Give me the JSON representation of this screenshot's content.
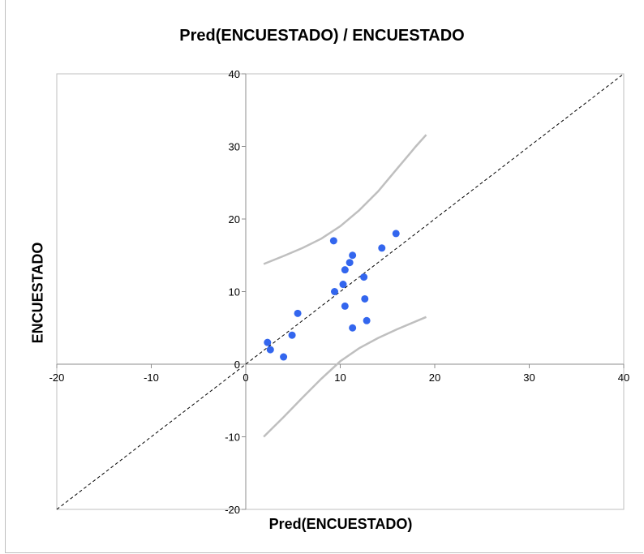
{
  "chart_data": {
    "type": "scatter",
    "title": "Pred(ENCUESTADO) / ENCUESTADO",
    "xlabel": "Pred(ENCUESTADO)",
    "ylabel": "ENCUESTADO",
    "xlim": [
      -20,
      40
    ],
    "ylim": [
      -20,
      40
    ],
    "xticks": [
      -20,
      -10,
      0,
      10,
      20,
      30,
      40
    ],
    "yticks": [
      -20,
      -10,
      0,
      10,
      20,
      30,
      40
    ],
    "grid": false,
    "series": [
      {
        "type": "scatter",
        "color": "#3366ee",
        "points": [
          {
            "x": 2.3,
            "y": 3
          },
          {
            "x": 2.6,
            "y": 2
          },
          {
            "x": 4.0,
            "y": 1
          },
          {
            "x": 4.9,
            "y": 4
          },
          {
            "x": 5.5,
            "y": 7
          },
          {
            "x": 9.3,
            "y": 17
          },
          {
            "x": 9.4,
            "y": 10
          },
          {
            "x": 10.3,
            "y": 11
          },
          {
            "x": 10.5,
            "y": 13
          },
          {
            "x": 10.5,
            "y": 8
          },
          {
            "x": 11.0,
            "y": 14
          },
          {
            "x": 11.3,
            "y": 15
          },
          {
            "x": 11.3,
            "y": 5
          },
          {
            "x": 12.5,
            "y": 12
          },
          {
            "x": 12.6,
            "y": 9
          },
          {
            "x": 12.8,
            "y": 6
          },
          {
            "x": 14.4,
            "y": 16
          },
          {
            "x": 15.9,
            "y": 18
          }
        ]
      },
      {
        "type": "line",
        "style": "dashed",
        "color": "#000000",
        "points": [
          {
            "x": -20,
            "y": -20
          },
          {
            "x": 40,
            "y": 40
          }
        ]
      },
      {
        "type": "line",
        "color": "#bfbfbf",
        "points": [
          {
            "x": 1.9,
            "y": 13.8
          },
          {
            "x": 4,
            "y": 14.9
          },
          {
            "x": 6,
            "y": 16.0
          },
          {
            "x": 8,
            "y": 17.3
          },
          {
            "x": 10,
            "y": 19.0
          },
          {
            "x": 12,
            "y": 21.2
          },
          {
            "x": 14,
            "y": 23.8
          },
          {
            "x": 16,
            "y": 26.9
          },
          {
            "x": 18,
            "y": 30.0
          },
          {
            "x": 19.1,
            "y": 31.6
          }
        ]
      },
      {
        "type": "line",
        "color": "#bfbfbf",
        "points": [
          {
            "x": 1.9,
            "y": -10.0
          },
          {
            "x": 4,
            "y": -7.3
          },
          {
            "x": 6,
            "y": -4.6
          },
          {
            "x": 8,
            "y": -2.0
          },
          {
            "x": 10,
            "y": 0.4
          },
          {
            "x": 12,
            "y": 2.2
          },
          {
            "x": 14,
            "y": 3.6
          },
          {
            "x": 16,
            "y": 4.8
          },
          {
            "x": 18,
            "y": 5.9
          },
          {
            "x": 19.1,
            "y": 6.5
          }
        ]
      }
    ]
  }
}
